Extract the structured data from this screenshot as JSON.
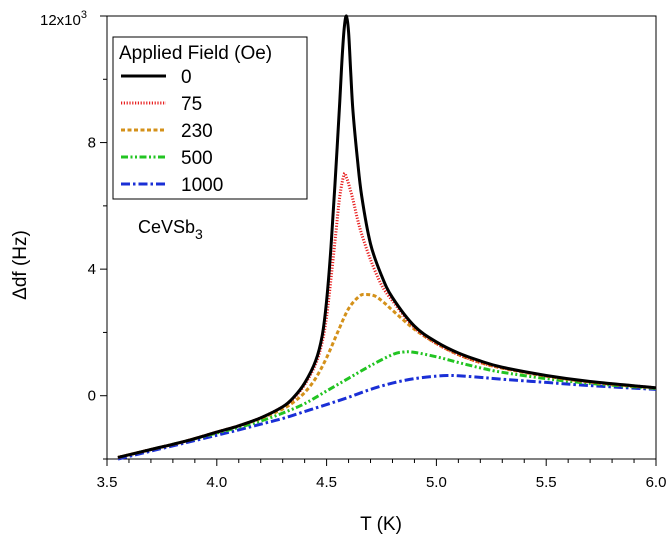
{
  "chart_data": {
    "type": "line",
    "xlabel": "T (K)",
    "ylabel": "Δdf (Hz)",
    "xlim": [
      3.5,
      6.0
    ],
    "ylim": [
      -2000,
      12000
    ],
    "x_ticks": [
      3.5,
      4.0,
      4.5,
      5.0,
      5.5,
      6.0
    ],
    "x_tick_labels": [
      "3.5",
      "4.0",
      "4.5",
      "5.0",
      "5.5",
      "6.0"
    ],
    "y_ticks": [
      0,
      4000,
      8000,
      12000
    ],
    "y_tick_labels": [
      "0",
      "4",
      "8",
      "12x10"
    ],
    "y_tick_label_exponent": "3",
    "grid": false,
    "legend": {
      "title": "Applied Field (Oe)",
      "placement": "top-left"
    },
    "annotation": {
      "text": "CeVSb",
      "subscript": "3"
    },
    "series": [
      {
        "name": "0",
        "color": "#000000",
        "dash": "solid",
        "x": [
          3.55,
          3.7,
          3.85,
          4.0,
          4.1,
          4.2,
          4.3,
          4.35,
          4.4,
          4.45,
          4.48,
          4.5,
          4.52,
          4.54,
          4.56,
          4.57,
          4.58,
          4.59,
          4.6,
          4.61,
          4.62,
          4.64,
          4.66,
          4.7,
          4.75,
          4.8,
          4.9,
          5.0,
          5.1,
          5.2,
          5.3,
          5.5,
          5.7,
          6.0
        ],
        "y": [
          -1950,
          -1700,
          -1450,
          -1150,
          -950,
          -700,
          -350,
          -50,
          400,
          1100,
          1900,
          3000,
          4700,
          6900,
          9300,
          10600,
          11600,
          12000,
          11500,
          10200,
          9000,
          7500,
          6300,
          4800,
          3800,
          3100,
          2200,
          1700,
          1350,
          1100,
          900,
          640,
          450,
          250
        ]
      },
      {
        "name": "75",
        "color": "#e82020",
        "dash": "dotted",
        "x": [
          3.55,
          3.7,
          3.85,
          4.0,
          4.1,
          4.2,
          4.3,
          4.35,
          4.4,
          4.45,
          4.48,
          4.5,
          4.52,
          4.54,
          4.56,
          4.58,
          4.59,
          4.6,
          4.62,
          4.64,
          4.66,
          4.7,
          4.75,
          4.8,
          4.9,
          5.0,
          5.1,
          5.2,
          5.3,
          5.5,
          5.7,
          6.0
        ],
        "y": [
          -1950,
          -1700,
          -1450,
          -1150,
          -950,
          -700,
          -350,
          -80,
          350,
          1000,
          1700,
          2500,
          3700,
          5000,
          6300,
          7000,
          6900,
          6700,
          6200,
          5600,
          5100,
          4300,
          3500,
          3000,
          2150,
          1650,
          1300,
          1050,
          880,
          630,
          440,
          250
        ]
      },
      {
        "name": "230",
        "color": "#d4911a",
        "dash": "dashed",
        "x": [
          3.55,
          3.7,
          3.85,
          4.0,
          4.1,
          4.2,
          4.3,
          4.35,
          4.4,
          4.45,
          4.5,
          4.55,
          4.6,
          4.65,
          4.68,
          4.72,
          4.76,
          4.8,
          4.9,
          5.0,
          5.1,
          5.2,
          5.3,
          5.5,
          5.7,
          6.0
        ],
        "y": [
          -1950,
          -1700,
          -1450,
          -1150,
          -950,
          -720,
          -420,
          -200,
          100,
          550,
          1200,
          2000,
          2750,
          3150,
          3200,
          3150,
          2950,
          2700,
          2100,
          1650,
          1300,
          1050,
          870,
          620,
          430,
          240
        ]
      },
      {
        "name": "500",
        "color": "#22c422",
        "dash": "dashdotdot",
        "x": [
          3.55,
          3.7,
          3.85,
          4.0,
          4.1,
          4.2,
          4.3,
          4.4,
          4.5,
          4.6,
          4.7,
          4.8,
          4.85,
          4.9,
          5.0,
          5.1,
          5.2,
          5.3,
          5.5,
          5.7,
          6.0
        ],
        "y": [
          -1950,
          -1700,
          -1450,
          -1180,
          -1000,
          -800,
          -550,
          -250,
          150,
          550,
          950,
          1300,
          1380,
          1370,
          1230,
          1050,
          880,
          740,
          540,
          390,
          230
        ]
      },
      {
        "name": "1000",
        "color": "#1a2fd6",
        "dash": "dashdot",
        "x": [
          3.55,
          3.7,
          3.85,
          4.0,
          4.1,
          4.2,
          4.3,
          4.4,
          4.5,
          4.6,
          4.7,
          4.8,
          4.9,
          5.0,
          5.05,
          5.1,
          5.2,
          5.3,
          5.5,
          5.7,
          6.0
        ],
        "y": [
          -2000,
          -1750,
          -1500,
          -1250,
          -1080,
          -900,
          -720,
          -500,
          -280,
          -50,
          200,
          400,
          540,
          620,
          640,
          630,
          580,
          520,
          420,
          320,
          200
        ]
      }
    ]
  }
}
